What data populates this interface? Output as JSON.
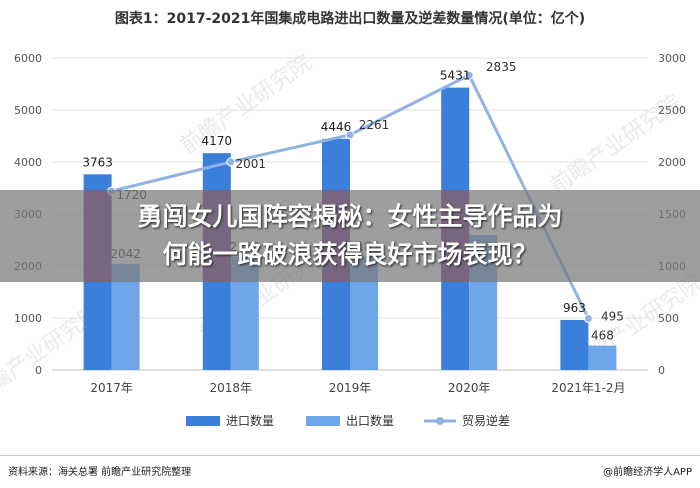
{
  "title": "图表1：2017-2021年国集成电路进出口数量及逆差数量情况(单位：亿个)",
  "banner": {
    "line1": "勇闯女儿国阵容揭秘：女性主导作品为",
    "line2": "何能一路破浪获得良好市场表现？"
  },
  "watermark": "前瞻产业研究院",
  "footer": {
    "source": "资料来源：海关总署 前瞻产业研究院整理",
    "brand": "@前瞻经济学人APP"
  },
  "colors": {
    "import": "#3a7fd9",
    "export": "#6fa6ea",
    "trade": "#8fb3e4",
    "banner_bar": "#7f2f8a"
  },
  "chart_data": {
    "type": "bar",
    "categories": [
      "2017年",
      "2018年",
      "2019年",
      "2020年",
      "2021年1-2月"
    ],
    "series": [
      {
        "name": "进口数量",
        "type": "bar",
        "axis": "left",
        "values": [
          3763,
          4170,
          4446,
          5431,
          963
        ],
        "labels": [
          "3763",
          "4170",
          "4446",
          "5431",
          "963"
        ]
      },
      {
        "name": "出口数量",
        "type": "bar",
        "axis": "left",
        "values": [
          2042,
          2169,
          2185,
          2596,
          468
        ],
        "labels": [
          "2042",
          "2169",
          "2185",
          "",
          "468"
        ]
      },
      {
        "name": "贸易逆差",
        "type": "line",
        "axis": "right",
        "values": [
          1720,
          2001,
          2261,
          2835,
          495
        ],
        "labels": [
          "1720",
          "2001",
          "2261",
          "2835",
          "495"
        ]
      }
    ],
    "ylim_left": [
      0,
      6000
    ],
    "yticks_left": [
      "0",
      "1000",
      "2000",
      "3000",
      "4000",
      "5000",
      "6000"
    ],
    "ylim_right": [
      0,
      3000
    ],
    "yticks_right": [
      "0",
      "500",
      "1000",
      "1500",
      "2000",
      "2500",
      "3000"
    ],
    "grid": true,
    "legend": "bottom"
  }
}
